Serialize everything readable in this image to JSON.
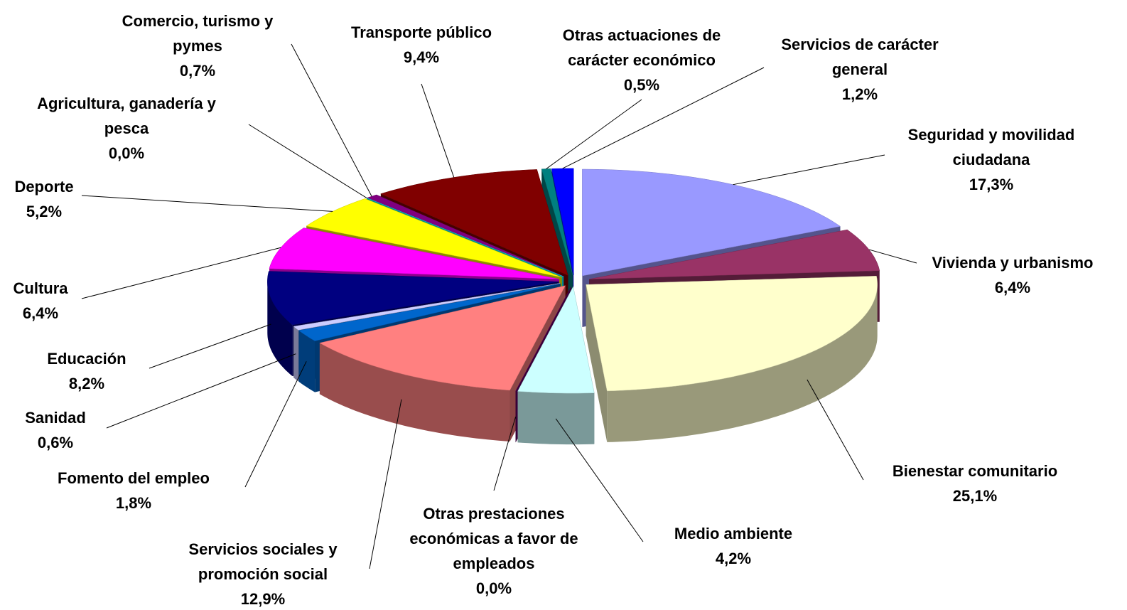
{
  "chart_data": {
    "type": "pie3d",
    "categories": [
      "Seguridad y movilidad ciudadana",
      "Vivienda y urbanismo",
      "Bienestar comunitario",
      "Medio ambiente",
      "Otras prestaciones económicas a favor de empleados",
      "Servicios sociales y promoción social",
      "Fomento del empleo",
      "Sanidad",
      "Educación",
      "Cultura",
      "Deporte",
      "Agricultura, ganadería y pesca",
      "Comercio, turismo y pymes",
      "Transporte público",
      "Otras actuaciones de carácter económico",
      "Servicios de carácter general"
    ],
    "values": [
      17.3,
      6.4,
      25.1,
      4.2,
      0.0,
      12.9,
      1.8,
      0.6,
      8.2,
      6.4,
      5.2,
      0.0,
      0.7,
      9.4,
      0.5,
      1.2
    ],
    "value_labels": [
      "17,3%",
      "6,4%",
      "25,1%",
      "4,2%",
      "0,0%",
      "12,9%",
      "1,8%",
      "0,6%",
      "8,2%",
      "6,4%",
      "5,2%",
      "0,0%",
      "0,7%",
      "9,4%",
      "0,5%",
      "1,2%"
    ],
    "colors": [
      "#9999ff",
      "#993366",
      "#ffffcc",
      "#ccffff",
      "#660066",
      "#ff8080",
      "#0066cc",
      "#ccccff",
      "#000080",
      "#ff00ff",
      "#ffff00",
      "#00ffff",
      "#800080",
      "#800000",
      "#008080",
      "#0000ff"
    ]
  }
}
